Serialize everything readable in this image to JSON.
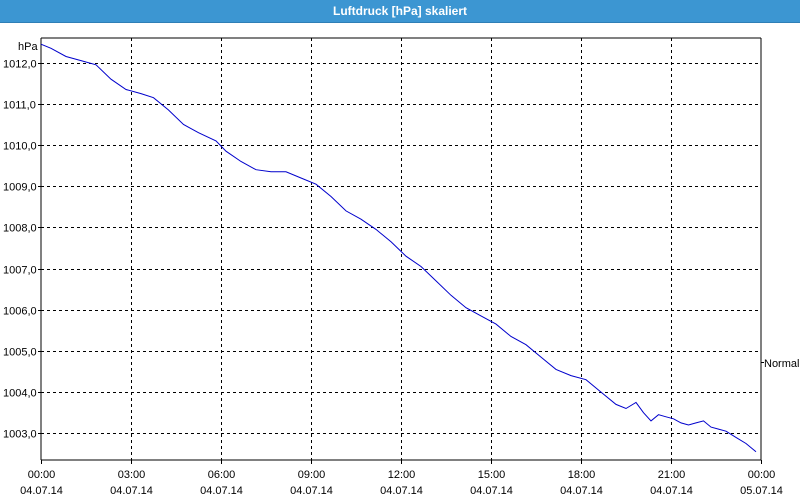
{
  "window": {
    "title": "Luftdruck [hPa] skaliert"
  },
  "chart_data": {
    "type": "line",
    "title": "Luftdruck [hPa] skaliert",
    "ylabel": "hPa",
    "xlabel": "",
    "legend": {
      "entries": [
        "Normal"
      ],
      "placement": "right"
    },
    "grid": true,
    "ylim": [
      1002.35,
      1012.6
    ],
    "y_ticks": [
      1003.0,
      1004.0,
      1005.0,
      1006.0,
      1007.0,
      1008.0,
      1009.0,
      1010.0,
      1011.0,
      1012.0
    ],
    "y_tick_labels": [
      "1003,0",
      "1004,0",
      "1005,0",
      "1006,0",
      "1007,0",
      "1008,0",
      "1009,0",
      "1010,0",
      "1011,0",
      "1012,0"
    ],
    "x_ticks": [
      {
        "time": "00:00",
        "date": "04.07.14"
      },
      {
        "time": "03:00",
        "date": "04.07.14"
      },
      {
        "time": "06:00",
        "date": "04.07.14"
      },
      {
        "time": "09:00",
        "date": "04.07.14"
      },
      {
        "time": "12:00",
        "date": "04.07.14"
      },
      {
        "time": "15:00",
        "date": "04.07.14"
      },
      {
        "time": "18:00",
        "date": "04.07.14"
      },
      {
        "time": "21:00",
        "date": "04.07.14"
      },
      {
        "time": "00:00",
        "date": "05.07.14"
      }
    ],
    "series": [
      {
        "name": "Normal",
        "color": "#0000cc",
        "x": [
          "2014-07-04 00:00",
          "2014-07-04 00:20",
          "2014-07-04 00:50",
          "2014-07-04 01:20",
          "2014-07-04 01:50",
          "2014-07-04 02:20",
          "2014-07-04 02:50",
          "2014-07-04 03:20",
          "2014-07-04 03:45",
          "2014-07-04 04:15",
          "2014-07-04 04:45",
          "2014-07-04 05:15",
          "2014-07-04 05:50",
          "2014-07-04 06:10",
          "2014-07-04 06:40",
          "2014-07-04 07:10",
          "2014-07-04 07:40",
          "2014-07-04 08:10",
          "2014-07-04 08:40",
          "2014-07-04 09:10",
          "2014-07-04 09:40",
          "2014-07-04 10:10",
          "2014-07-04 10:40",
          "2014-07-04 11:10",
          "2014-07-04 11:40",
          "2014-07-04 12:10",
          "2014-07-04 12:40",
          "2014-07-04 13:10",
          "2014-07-04 13:40",
          "2014-07-04 14:10",
          "2014-07-04 14:40",
          "2014-07-04 15:10",
          "2014-07-04 15:40",
          "2014-07-04 16:10",
          "2014-07-04 16:40",
          "2014-07-04 17:10",
          "2014-07-04 17:40",
          "2014-07-04 18:10",
          "2014-07-04 18:40",
          "2014-07-04 19:10",
          "2014-07-04 19:30",
          "2014-07-04 19:50",
          "2014-07-04 20:05",
          "2014-07-04 20:20",
          "2014-07-04 20:35",
          "2014-07-04 20:50",
          "2014-07-04 21:05",
          "2014-07-04 21:20",
          "2014-07-04 21:35",
          "2014-07-04 21:50",
          "2014-07-04 22:05",
          "2014-07-04 22:20",
          "2014-07-04 22:35",
          "2014-07-04 22:50",
          "2014-07-04 23:10",
          "2014-07-04 23:30",
          "2014-07-04 23:50"
        ],
        "y": [
          1012.45,
          1012.35,
          1012.15,
          1012.05,
          1011.95,
          1011.6,
          1011.35,
          1011.25,
          1011.15,
          1010.85,
          1010.5,
          1010.3,
          1010.1,
          1009.85,
          1009.6,
          1009.4,
          1009.35,
          1009.35,
          1009.2,
          1009.05,
          1008.75,
          1008.4,
          1008.2,
          1007.95,
          1007.65,
          1007.3,
          1007.05,
          1006.7,
          1006.35,
          1006.05,
          1005.85,
          1005.65,
          1005.35,
          1005.15,
          1004.85,
          1004.55,
          1004.4,
          1004.3,
          1004.0,
          1003.7,
          1003.6,
          1003.75,
          1003.5,
          1003.3,
          1003.45,
          1003.4,
          1003.35,
          1003.25,
          1003.2,
          1003.25,
          1003.3,
          1003.15,
          1003.1,
          1003.05,
          1002.9,
          1002.75,
          1002.55
        ]
      }
    ]
  }
}
